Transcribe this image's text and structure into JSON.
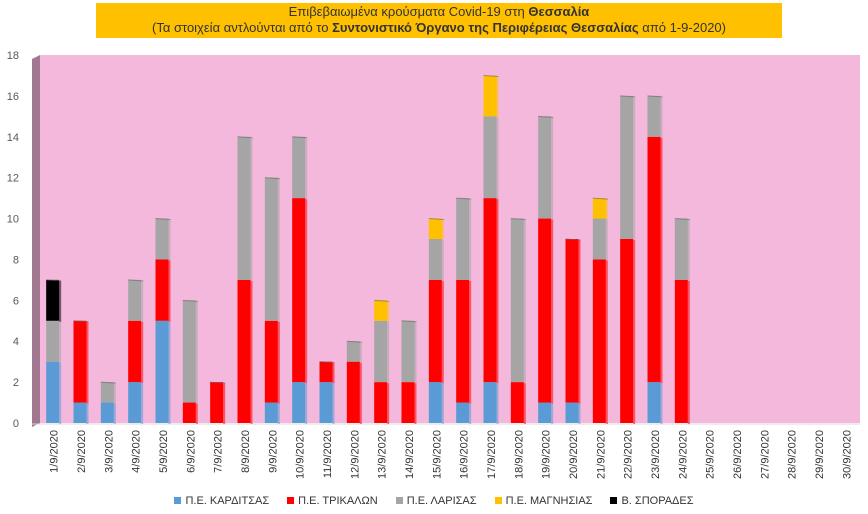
{
  "title": {
    "line1_prefix": "Επιβεβαιωμένα κρούσματα Covid-19 στη ",
    "line1_bold": "Θεσσαλία",
    "line2_prefix": "(Τα στοιχεία αντλούνται από το ",
    "line2_bold": "Συντονιστικό Όργανο της Περιφέρειας Θεσσαλίας",
    "line2_suffix": " από 1-9-2020)"
  },
  "colors": {
    "plot_bg": "#f4b8dc",
    "wall_side": "#a07890",
    "title_bg": "#ffc000"
  },
  "chart_data": {
    "type": "bar",
    "stacked": true,
    "ylim": [
      0,
      18
    ],
    "yticks": [
      0,
      2,
      4,
      6,
      8,
      10,
      12,
      14,
      16,
      18
    ],
    "legend_position": "bottom",
    "grid": false,
    "categories": [
      "1/9/2020",
      "2/9/2020",
      "3/9/2020",
      "4/9/2020",
      "5/9/2020",
      "6/9/2020",
      "7/9/2020",
      "8/9/2020",
      "9/9/2020",
      "10/9/2020",
      "11/9/2020",
      "12/9/2020",
      "13/9/2020",
      "14/9/2020",
      "15/9/2020",
      "16/9/2020",
      "17/9/2020",
      "18/9/2020",
      "19/9/2020",
      "20/9/2020",
      "21/9/2020",
      "22/9/2020",
      "23/9/2020",
      "24/9/2020",
      "25/9/2020",
      "26/9/2020",
      "27/9/2020",
      "28/9/2020",
      "29/9/2020",
      "30/9/2020"
    ],
    "series": [
      {
        "name": "Π.Ε. ΚΑΡΔΙΤΣΑΣ",
        "color": "#5b9bd5",
        "values": [
          3,
          1,
          1,
          2,
          5,
          0,
          0,
          0,
          1,
          2,
          2,
          0,
          0,
          0,
          2,
          1,
          2,
          0,
          1,
          1,
          0,
          0,
          2,
          0,
          0,
          0,
          0,
          0,
          0,
          0
        ]
      },
      {
        "name": "Π.Ε. ΤΡΙΚΑΛΩΝ",
        "color": "#ff0000",
        "values": [
          0,
          4,
          0,
          3,
          3,
          1,
          2,
          7,
          4,
          9,
          1,
          3,
          2,
          2,
          5,
          6,
          9,
          2,
          9,
          8,
          8,
          9,
          12,
          7,
          0,
          0,
          0,
          0,
          0,
          0
        ]
      },
      {
        "name": "Π.Ε. ΛΑΡΙΣΑΣ",
        "color": "#a5a5a5",
        "values": [
          2,
          0,
          1,
          2,
          2,
          5,
          0,
          7,
          7,
          3,
          0,
          1,
          3,
          3,
          2,
          4,
          4,
          8,
          5,
          0,
          2,
          7,
          2,
          3,
          0,
          0,
          0,
          0,
          0,
          0
        ]
      },
      {
        "name": "Π.Ε. ΜΑΓΝΗΣΙΑΣ",
        "color": "#ffc000",
        "values": [
          0,
          0,
          0,
          0,
          0,
          0,
          0,
          0,
          0,
          0,
          0,
          0,
          1,
          0,
          1,
          0,
          2,
          0,
          0,
          0,
          1,
          0,
          0,
          0,
          0,
          0,
          0,
          0,
          0,
          0
        ]
      },
      {
        "name": "Β. ΣΠΟΡΑΔΕΣ",
        "color": "#000000",
        "values": [
          2,
          0,
          0,
          0,
          0,
          0,
          0,
          0,
          0,
          0,
          0,
          0,
          0,
          0,
          0,
          0,
          0,
          0,
          0,
          0,
          0,
          0,
          0,
          0,
          0,
          0,
          0,
          0,
          0,
          0
        ]
      }
    ]
  }
}
